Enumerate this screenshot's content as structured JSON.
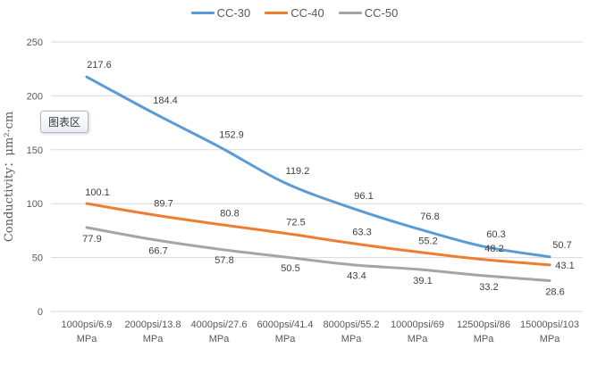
{
  "tooltip": {
    "text": "图表区"
  },
  "chart_data": {
    "type": "line",
    "title": "",
    "xlabel": "",
    "ylabel": "Conductivity：μm²·cm",
    "ylim": [
      0,
      250
    ],
    "y_ticks": [
      0,
      50,
      100,
      150,
      200,
      250
    ],
    "grid": true,
    "smoothed_lines": true,
    "legend_position": "top-center",
    "categories": [
      {
        "line1": "1000psi/6.9",
        "line2": "MPa"
      },
      {
        "line1": "2000psi/13.8",
        "line2": "MPa"
      },
      {
        "line1": "4000psi/27.6",
        "line2": "MPa"
      },
      {
        "line1": "6000psi/41.4",
        "line2": "MPa"
      },
      {
        "line1": "8000psi/55.2",
        "line2": "MPa"
      },
      {
        "line1": "10000psi/69",
        "line2": "MPa"
      },
      {
        "line1": "12500psi/86",
        "line2": "MPa"
      },
      {
        "line1": "15000psi/103",
        "line2": "MPa"
      }
    ],
    "series": [
      {
        "name": "CC-30",
        "color": "#5B9BD5",
        "values": [
          217.6,
          184.4,
          152.9,
          119.2,
          96.1,
          76.8,
          60.3,
          50.7
        ],
        "label_offset": {
          "dx": 14,
          "dy": -10
        }
      },
      {
        "name": "CC-40",
        "color": "#ED7D31",
        "values": [
          100.1,
          89.7,
          80.8,
          72.5,
          63.3,
          55.2,
          48.2,
          43.1
        ],
        "label_offset": {
          "dx": 12,
          "dy": -9
        },
        "last_label_offset": {
          "dx": 17,
          "dy": 4
        }
      },
      {
        "name": "CC-50",
        "color": "#A5A5A5",
        "values": [
          77.9,
          66.7,
          57.8,
          50.5,
          43.4,
          39.1,
          33.2,
          28.6
        ],
        "label_offset": {
          "dx": 6,
          "dy": 16
        }
      }
    ],
    "colors": {
      "gridline": "#D9D9D9",
      "axis_text": "#595959",
      "data_label_text": "#404040"
    }
  }
}
